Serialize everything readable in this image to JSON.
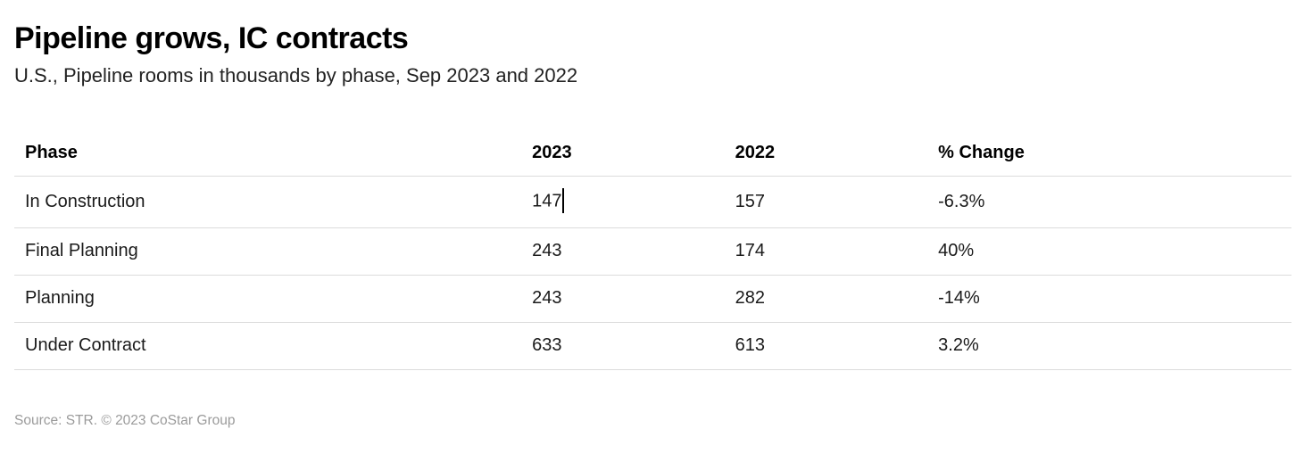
{
  "chart_data": {
    "type": "table",
    "title": "Pipeline grows, IC contracts",
    "subtitle": "U.S., Pipeline rooms in thousands by phase, Sep 2023 and 2022",
    "columns": [
      "Phase",
      "2023",
      "2022",
      "% Change"
    ],
    "rows": [
      [
        "In Construction",
        147,
        157,
        "-6.3%"
      ],
      [
        "Final Planning",
        243,
        174,
        "40%"
      ],
      [
        "Planning",
        243,
        282,
        "-14%"
      ],
      [
        "Under Contract",
        633,
        613,
        "3.2%"
      ]
    ],
    "source": "Source: STR. © 2023 CoStar Group",
    "layout": {
      "column_alignment": [
        "left",
        "left",
        "left",
        "left"
      ],
      "grid": "horizontal-dividers-only",
      "legend_position": "none"
    },
    "editing_state": {
      "active_cell_row": 0,
      "active_cell_column": "2023",
      "cursor": "text-caret-after-value"
    }
  },
  "colors": {
    "background": "#ffffff",
    "title_text": "#000000",
    "body_text": "#1a1a1a",
    "divider": "#dcdcdc",
    "source_text": "#9b9b9b",
    "caret": "#000000"
  }
}
